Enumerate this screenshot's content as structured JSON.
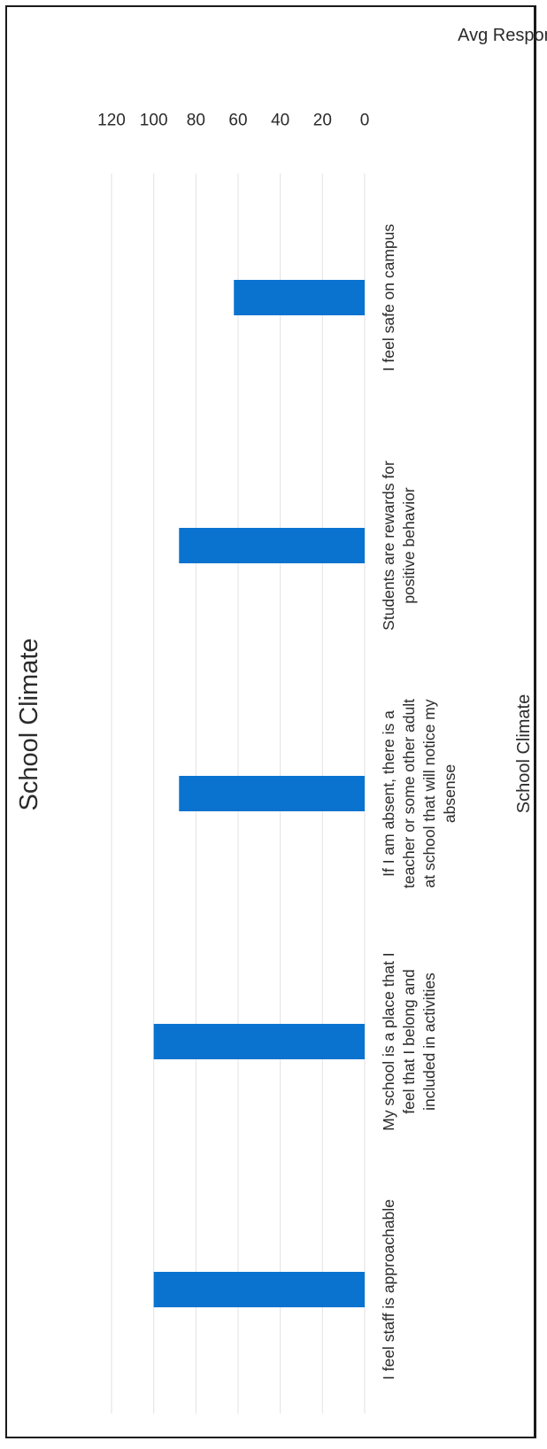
{
  "chart_data": {
    "type": "bar",
    "title": "School Climate",
    "xlabel": "School Climate",
    "ylabel": "Avg Response",
    "ylim": [
      0,
      120
    ],
    "yticks": [
      0,
      20,
      40,
      60,
      80,
      100,
      120
    ],
    "grid": true,
    "categories": [
      "I feel staff is approachable",
      "My school is a place that I feel that I belong and included in activities",
      "If I am absent, there is a teacher or some other adult at school that will notice my absense",
      "Students are rewards for positive behavior",
      "I feel safe on campus"
    ],
    "category_lines": [
      [
        "I feel staff is approachable"
      ],
      [
        "My school is a place that I",
        "feel that I belong and",
        "included in activities"
      ],
      [
        "If I am absent, there is a",
        "teacher or some other adult",
        "at school that will notice my",
        "absense"
      ],
      [
        "Students are rewards for",
        "positive behavior"
      ],
      [
        "I feel safe on campus"
      ]
    ],
    "values": [
      100,
      100,
      88,
      88,
      62
    ],
    "bar_color": "#0a73cf"
  }
}
